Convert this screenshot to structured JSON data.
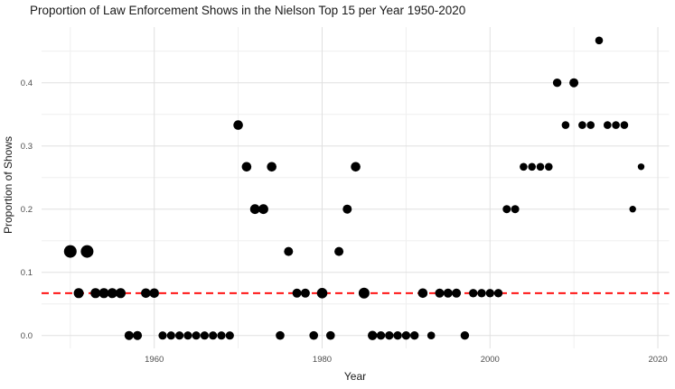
{
  "title": "Proportion of Law Enforcement Shows in the Nielson Top 15 per Year 1950-2020",
  "colors": {
    "background": "#ffffff",
    "point": "#000000",
    "reference_line": "#ff0000",
    "grid_major": "#e0e0e0",
    "grid_minor": "#efefef",
    "tick_label": "#4d4d4d",
    "axis_title": "#1a1a1a",
    "title": "#1a1a1a"
  },
  "chart_data": {
    "type": "scatter",
    "title": "Proportion of Law Enforcement Shows in the Nielson Top 15 per Year 1950-2020",
    "xlabel": "Year",
    "ylabel": "Proportion of Shows",
    "x_ticks": {
      "values": [
        1960,
        1980,
        2000,
        2020
      ],
      "labels": [
        "1960",
        "1980",
        "2000",
        "2020"
      ]
    },
    "y_ticks": {
      "values": [
        0.0,
        0.1,
        0.2,
        0.3,
        0.4
      ],
      "labels": [
        "0.0",
        "0.1",
        "0.2",
        "0.3",
        "0.4"
      ]
    },
    "x_minor_gridlines": [
      1950,
      1970,
      1990,
      2010
    ],
    "y_minor_gridlines": [
      0.05,
      0.15,
      0.25,
      0.35,
      0.45
    ],
    "xlim": [
      1946.6,
      2021.4
    ],
    "ylim": [
      -0.023,
      0.488
    ],
    "grid": "on",
    "legend": "none",
    "reference_line": {
      "y": 0.067,
      "style": "dashed",
      "color": "#ff0000"
    },
    "points_columns": [
      "year",
      "proportion",
      "radius_px"
    ],
    "points": [
      [
        1950,
        0.133,
        7.0
      ],
      [
        1951,
        0.067,
        5.5
      ],
      [
        1952,
        0.133,
        7.0
      ],
      [
        1953,
        0.067,
        5.5
      ],
      [
        1954,
        0.067,
        5.5
      ],
      [
        1955,
        0.067,
        5.5
      ],
      [
        1956,
        0.067,
        5.5
      ],
      [
        1957,
        0.0,
        5.0
      ],
      [
        1958,
        0.0,
        5.0
      ],
      [
        1959,
        0.067,
        5.3
      ],
      [
        1960,
        0.067,
        5.3
      ],
      [
        1961,
        0.0,
        4.6
      ],
      [
        1962,
        0.0,
        4.6
      ],
      [
        1963,
        0.0,
        4.6
      ],
      [
        1964,
        0.0,
        4.6
      ],
      [
        1965,
        0.0,
        4.6
      ],
      [
        1966,
        0.0,
        4.6
      ],
      [
        1967,
        0.0,
        4.6
      ],
      [
        1968,
        0.0,
        4.6
      ],
      [
        1969,
        0.0,
        4.6
      ],
      [
        1970,
        0.333,
        5.3
      ],
      [
        1971,
        0.267,
        5.3
      ],
      [
        1972,
        0.2,
        5.4
      ],
      [
        1973,
        0.2,
        5.4
      ],
      [
        1974,
        0.267,
        5.3
      ],
      [
        1975,
        0.0,
        4.8
      ],
      [
        1976,
        0.133,
        5.0
      ],
      [
        1977,
        0.067,
        5.0
      ],
      [
        1978,
        0.067,
        5.0
      ],
      [
        1979,
        0.0,
        4.8
      ],
      [
        1980,
        0.067,
        5.8
      ],
      [
        1981,
        0.0,
        4.8
      ],
      [
        1982,
        0.133,
        5.0
      ],
      [
        1983,
        0.2,
        5.0
      ],
      [
        1984,
        0.267,
        5.3
      ],
      [
        1985,
        0.067,
        6.0
      ],
      [
        1986,
        0.0,
        5.2
      ],
      [
        1987,
        0.0,
        4.7
      ],
      [
        1988,
        0.0,
        4.7
      ],
      [
        1989,
        0.0,
        4.7
      ],
      [
        1990,
        0.0,
        4.7
      ],
      [
        1991,
        0.0,
        4.7
      ],
      [
        1992,
        0.067,
        5.3
      ],
      [
        1993,
        0.0,
        4.3
      ],
      [
        1994,
        0.067,
        5.0
      ],
      [
        1995,
        0.067,
        5.0
      ],
      [
        1996,
        0.067,
        5.0
      ],
      [
        1997,
        0.0,
        4.7
      ],
      [
        1998,
        0.067,
        4.7
      ],
      [
        1999,
        0.067,
        4.7
      ],
      [
        2000,
        0.067,
        4.7
      ],
      [
        2001,
        0.067,
        4.7
      ],
      [
        2002,
        0.2,
        4.5
      ],
      [
        2003,
        0.2,
        4.5
      ],
      [
        2004,
        0.267,
        4.3
      ],
      [
        2005,
        0.267,
        4.3
      ],
      [
        2006,
        0.267,
        4.3
      ],
      [
        2007,
        0.267,
        4.3
      ],
      [
        2008,
        0.4,
        4.7
      ],
      [
        2009,
        0.333,
        4.3
      ],
      [
        2010,
        0.4,
        5.0
      ],
      [
        2011,
        0.333,
        4.3
      ],
      [
        2012,
        0.333,
        4.3
      ],
      [
        2013,
        0.467,
        4.3
      ],
      [
        2014,
        0.333,
        4.3
      ],
      [
        2015,
        0.333,
        4.3
      ],
      [
        2016,
        0.333,
        4.3
      ],
      [
        2017,
        0.2,
        3.7
      ],
      [
        2018,
        0.267,
        3.7
      ]
    ]
  }
}
